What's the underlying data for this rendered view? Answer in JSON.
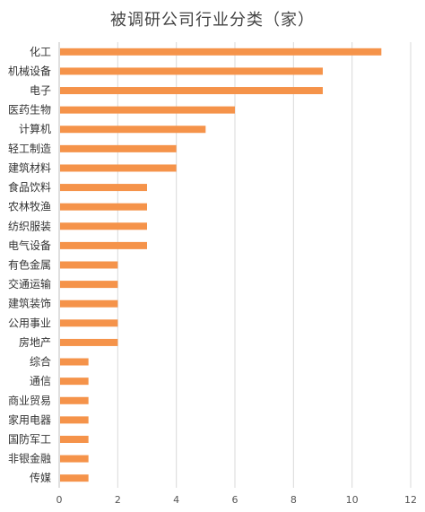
{
  "chart_data": {
    "type": "bar",
    "orientation": "horizontal",
    "title": "被调研公司行业分类（家）",
    "categories": [
      "化工",
      "机械设备",
      "电子",
      "医药生物",
      "计算机",
      "轻工制造",
      "建筑材料",
      "食品饮料",
      "农林牧渔",
      "纺织服装",
      "电气设备",
      "有色金属",
      "交通运输",
      "建筑装饰",
      "公用事业",
      "房地产",
      "综合",
      "通信",
      "商业贸易",
      "家用电器",
      "国防军工",
      "非银金融",
      "传媒"
    ],
    "values": [
      11,
      9,
      9,
      6,
      5,
      4,
      4,
      3,
      3,
      3,
      3,
      2,
      2,
      2,
      2,
      2,
      1,
      1,
      1,
      1,
      1,
      1,
      1
    ],
    "xlim": [
      0,
      12
    ],
    "xticks": [
      0,
      2,
      4,
      6,
      8,
      10,
      12
    ],
    "grid": true,
    "bar_color": "#F5934A"
  }
}
